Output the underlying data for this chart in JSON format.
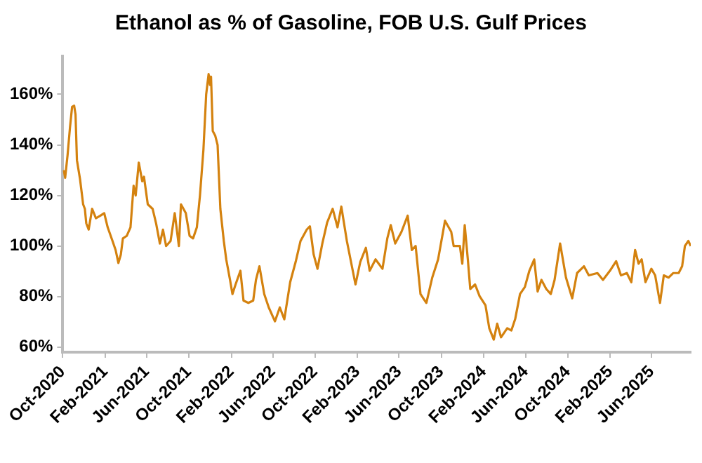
{
  "chart_data": {
    "type": "line",
    "title": "Ethanol as % of Gasoline, FOB U.S. Gulf Prices",
    "x": [
      "2020-10-04",
      "2020-10-08",
      "2020-10-15",
      "2020-10-22",
      "2020-10-28",
      "2020-11-03",
      "2020-11-07",
      "2020-11-11",
      "2020-11-20",
      "2020-11-29",
      "2020-12-04",
      "2020-12-08",
      "2020-12-15",
      "2020-12-25",
      "2021-01-05",
      "2021-01-18",
      "2021-01-29",
      "2021-02-08",
      "2021-02-22",
      "2021-03-03",
      "2021-03-11",
      "2021-03-18",
      "2021-03-24",
      "2021-04-04",
      "2021-04-15",
      "2021-04-24",
      "2021-04-30",
      "2021-05-09",
      "2021-05-19",
      "2021-05-24",
      "2021-06-04",
      "2021-06-18",
      "2021-06-28",
      "2021-07-09",
      "2021-07-18",
      "2021-07-27",
      "2021-08-09",
      "2021-08-21",
      "2021-09-02",
      "2021-09-08",
      "2021-09-22",
      "2021-10-03",
      "2021-10-13",
      "2021-10-24",
      "2021-11-02",
      "2021-11-12",
      "2021-11-20",
      "2021-11-27",
      "2021-12-01",
      "2021-12-04",
      "2021-12-09",
      "2021-12-16",
      "2021-12-23",
      "2021-12-31",
      "2022-01-10",
      "2022-01-17",
      "2022-01-28",
      "2022-02-04",
      "2022-02-13",
      "2022-02-27",
      "2022-03-08",
      "2022-03-22",
      "2022-04-05",
      "2022-04-13",
      "2022-04-23",
      "2022-05-07",
      "2022-05-20",
      "2022-06-07",
      "2022-06-21",
      "2022-07-04",
      "2022-07-21",
      "2022-08-06",
      "2022-08-20",
      "2022-09-07",
      "2022-09-16",
      "2022-09-27",
      "2022-10-08",
      "2022-10-22",
      "2022-11-05",
      "2022-11-21",
      "2022-12-05",
      "2022-12-16",
      "2023-01-01",
      "2023-01-26",
      "2023-02-09",
      "2023-02-25",
      "2023-03-08",
      "2023-03-25",
      "2023-04-14",
      "2023-04-28",
      "2023-05-08",
      "2023-05-21",
      "2023-06-08",
      "2023-06-26",
      "2023-07-08",
      "2023-07-19",
      "2023-08-02",
      "2023-08-19",
      "2023-09-05",
      "2023-09-22",
      "2023-10-12",
      "2023-10-30",
      "2023-11-06",
      "2023-11-24",
      "2023-12-01",
      "2023-12-08",
      "2023-12-17",
      "2023-12-24",
      "2024-01-07",
      "2024-01-20",
      "2024-02-06",
      "2024-02-17",
      "2024-03-01",
      "2024-03-11",
      "2024-03-22",
      "2024-04-09",
      "2024-04-21",
      "2024-05-02",
      "2024-05-16",
      "2024-05-30",
      "2024-06-12",
      "2024-06-26",
      "2024-07-06",
      "2024-07-17",
      "2024-07-31",
      "2024-08-13",
      "2024-08-24",
      "2024-09-09",
      "2024-09-26",
      "2024-10-14",
      "2024-10-28",
      "2024-11-17",
      "2024-12-01",
      "2024-12-26",
      "2025-01-11",
      "2025-01-31",
      "2025-02-18",
      "2025-03-04",
      "2025-03-21",
      "2025-04-03",
      "2025-04-14",
      "2025-04-24",
      "2025-05-03",
      "2025-05-14",
      "2025-05-31",
      "2025-06-11",
      "2025-06-25",
      "2025-07-06",
      "2025-07-20",
      "2025-08-02",
      "2025-08-18",
      "2025-08-28",
      "2025-09-05",
      "2025-09-15",
      "2025-09-22"
    ],
    "series": [
      {
        "color": "#d4820f",
        "values": [
          130,
          127,
          136,
          147,
          155,
          155.5,
          152,
          134,
          126.5,
          116.5,
          114.7,
          109,
          106.5,
          114.7,
          111,
          112,
          113,
          107.4,
          102,
          98.4,
          93.3,
          96.6,
          103,
          104,
          107.4,
          123.8,
          120,
          133,
          125.6,
          127.4,
          116.5,
          114.7,
          109,
          101,
          106.5,
          100,
          102,
          113,
          100,
          116.5,
          113,
          104,
          103,
          107.4,
          120,
          138,
          160,
          168,
          163.7,
          167,
          145.5,
          143.7,
          140,
          114.7,
          102,
          94.7,
          86.6,
          81,
          84.8,
          90.2,
          78.4,
          77.5,
          78.4,
          86.6,
          92,
          81,
          75.7,
          70.2,
          75.7,
          71,
          85.7,
          93.8,
          102,
          106.5,
          107.8,
          96.6,
          91,
          101,
          109.3,
          114.7,
          107.4,
          115.6,
          102,
          84.8,
          93.8,
          99.3,
          90.2,
          94.7,
          91,
          103,
          108.3,
          101,
          105.6,
          112,
          98.4,
          100,
          81,
          77.5,
          87.5,
          94.7,
          110,
          105.6,
          100,
          100,
          93,
          108.3,
          94.7,
          83,
          84.8,
          80.2,
          76.6,
          67.5,
          63,
          69.3,
          63.9,
          67.5,
          66.6,
          71.1,
          81,
          83.8,
          90.2,
          94.7,
          82,
          86.6,
          83,
          81,
          86.6,
          101,
          87.5,
          79.3,
          89.3,
          92,
          88.4,
          89.3,
          86.6,
          90.2,
          94,
          88.4,
          89.3,
          85.7,
          98.4,
          93,
          94.7,
          85.7,
          91,
          88.4,
          77.5,
          88.4,
          87.5,
          89.3,
          89.3,
          92,
          100,
          102,
          100
        ]
      }
    ],
    "xlim": [
      "2020-10-01",
      "2025-09-22"
    ],
    "xticks": [
      {
        "value": "2020-10-01",
        "label": "Oct-2020"
      },
      {
        "value": "2021-02-01",
        "label": "Feb-2021"
      },
      {
        "value": "2021-06-01",
        "label": "Jun-2021"
      },
      {
        "value": "2021-10-01",
        "label": "Oct-2021"
      },
      {
        "value": "2022-02-01",
        "label": "Feb-2022"
      },
      {
        "value": "2022-06-01",
        "label": "Jun-2022"
      },
      {
        "value": "2022-10-01",
        "label": "Oct-2022"
      },
      {
        "value": "2023-02-01",
        "label": "Feb-2023"
      },
      {
        "value": "2023-06-01",
        "label": "Jun-2023"
      },
      {
        "value": "2023-10-01",
        "label": "Oct-2023"
      },
      {
        "value": "2024-02-01",
        "label": "Feb-2024"
      },
      {
        "value": "2024-06-01",
        "label": "Jun-2024"
      },
      {
        "value": "2024-10-01",
        "label": "Oct-2024"
      },
      {
        "value": "2025-02-01",
        "label": "Feb-2025"
      },
      {
        "value": "2025-06-01",
        "label": "Jun-2025"
      }
    ],
    "ylim": [
      58,
      175
    ],
    "yticks": [
      {
        "value": 60,
        "label": "60%"
      },
      {
        "value": 80,
        "label": "80%"
      },
      {
        "value": 100,
        "label": "100%"
      },
      {
        "value": 120,
        "label": "120%"
      },
      {
        "value": 140,
        "label": "140%"
      },
      {
        "value": 160,
        "label": "160%"
      }
    ],
    "grid": false,
    "legend": false,
    "marker": "none",
    "line_style": "solid"
  }
}
